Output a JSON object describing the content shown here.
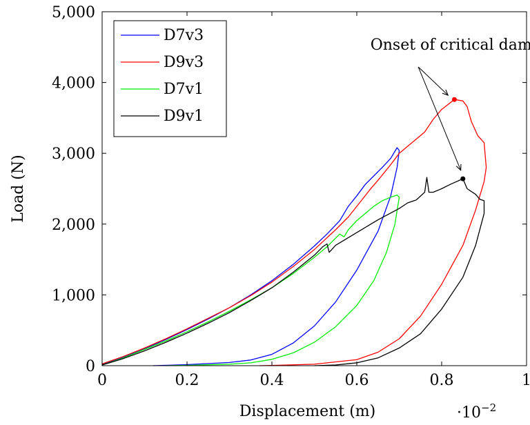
{
  "chart_data": {
    "type": "line",
    "title": "",
    "xlabel": "Displacement (m)",
    "ylabel": "Load (N)",
    "x_scale_note": {
      "base": "·10",
      "exponent": "−2"
    },
    "xlim": [
      0,
      1
    ],
    "ylim": [
      0,
      5000
    ],
    "x_ticks": [
      0,
      0.2,
      0.4,
      0.6,
      0.8,
      1
    ],
    "x_tick_labels": [
      "0",
      "0.2",
      "0.4",
      "0.6",
      "0.8",
      "1"
    ],
    "y_ticks": [
      0,
      1000,
      2000,
      3000,
      4000,
      5000
    ],
    "y_tick_labels": [
      "0",
      "1,000",
      "2,000",
      "3,000",
      "4,000",
      "5,000"
    ],
    "grid": false,
    "legend_position": "top-left",
    "series": [
      {
        "name": "D7v3",
        "color": "#0000ff",
        "points": [
          [
            0,
            20
          ],
          [
            0.05,
            120
          ],
          [
            0.1,
            240
          ],
          [
            0.15,
            370
          ],
          [
            0.2,
            510
          ],
          [
            0.25,
            660
          ],
          [
            0.3,
            820
          ],
          [
            0.35,
            1000
          ],
          [
            0.4,
            1200
          ],
          [
            0.45,
            1430
          ],
          [
            0.5,
            1690
          ],
          [
            0.53,
            1860
          ],
          [
            0.56,
            2050
          ],
          [
            0.57,
            2150
          ],
          [
            0.58,
            2250
          ],
          [
            0.6,
            2400
          ],
          [
            0.62,
            2560
          ],
          [
            0.64,
            2680
          ],
          [
            0.66,
            2800
          ],
          [
            0.68,
            2930
          ],
          [
            0.695,
            3080
          ],
          [
            0.7,
            3040
          ],
          [
            0.695,
            2800
          ],
          [
            0.68,
            2400
          ],
          [
            0.65,
            1900
          ],
          [
            0.6,
            1350
          ],
          [
            0.55,
            900
          ],
          [
            0.5,
            560
          ],
          [
            0.45,
            320
          ],
          [
            0.4,
            160
          ],
          [
            0.35,
            80
          ],
          [
            0.3,
            45
          ],
          [
            0.2,
            15
          ],
          [
            0.12,
            0
          ]
        ]
      },
      {
        "name": "D9v3",
        "color": "#ff0000",
        "points": [
          [
            0,
            25
          ],
          [
            0.05,
            130
          ],
          [
            0.1,
            250
          ],
          [
            0.15,
            380
          ],
          [
            0.2,
            520
          ],
          [
            0.25,
            670
          ],
          [
            0.3,
            820
          ],
          [
            0.35,
            990
          ],
          [
            0.4,
            1180
          ],
          [
            0.45,
            1400
          ],
          [
            0.5,
            1640
          ],
          [
            0.55,
            1920
          ],
          [
            0.58,
            2100
          ],
          [
            0.6,
            2250
          ],
          [
            0.63,
            2480
          ],
          [
            0.65,
            2620
          ],
          [
            0.68,
            2840
          ],
          [
            0.7,
            3000
          ],
          [
            0.73,
            3150
          ],
          [
            0.76,
            3300
          ],
          [
            0.78,
            3480
          ],
          [
            0.8,
            3620
          ],
          [
            0.83,
            3760
          ],
          [
            0.85,
            3740
          ],
          [
            0.86,
            3660
          ],
          [
            0.87,
            3450
          ],
          [
            0.885,
            3250
          ],
          [
            0.9,
            3150
          ],
          [
            0.905,
            2800
          ],
          [
            0.9,
            2600
          ],
          [
            0.88,
            2200
          ],
          [
            0.85,
            1700
          ],
          [
            0.8,
            1150
          ],
          [
            0.75,
            700
          ],
          [
            0.7,
            380
          ],
          [
            0.65,
            190
          ],
          [
            0.6,
            85
          ],
          [
            0.5,
            20
          ],
          [
            0.4,
            3
          ],
          [
            0.37,
            0
          ]
        ]
      },
      {
        "name": "D7v1",
        "color": "#00ee00",
        "points": [
          [
            0,
            10
          ],
          [
            0.05,
            110
          ],
          [
            0.1,
            230
          ],
          [
            0.15,
            350
          ],
          [
            0.2,
            480
          ],
          [
            0.25,
            620
          ],
          [
            0.3,
            770
          ],
          [
            0.35,
            930
          ],
          [
            0.4,
            1100
          ],
          [
            0.45,
            1300
          ],
          [
            0.5,
            1530
          ],
          [
            0.53,
            1680
          ],
          [
            0.56,
            1860
          ],
          [
            0.57,
            1820
          ],
          [
            0.58,
            1920
          ],
          [
            0.6,
            2050
          ],
          [
            0.62,
            2150
          ],
          [
            0.64,
            2250
          ],
          [
            0.66,
            2330
          ],
          [
            0.68,
            2380
          ],
          [
            0.695,
            2410
          ],
          [
            0.7,
            2380
          ],
          [
            0.69,
            2000
          ],
          [
            0.67,
            1600
          ],
          [
            0.64,
            1200
          ],
          [
            0.6,
            850
          ],
          [
            0.55,
            550
          ],
          [
            0.5,
            330
          ],
          [
            0.45,
            180
          ],
          [
            0.4,
            90
          ],
          [
            0.35,
            40
          ],
          [
            0.3,
            20
          ],
          [
            0.2,
            5
          ],
          [
            0.15,
            0
          ]
        ]
      },
      {
        "name": "D9v1",
        "color": "#000000",
        "points": [
          [
            0,
            10
          ],
          [
            0.05,
            100
          ],
          [
            0.1,
            210
          ],
          [
            0.15,
            330
          ],
          [
            0.2,
            460
          ],
          [
            0.25,
            600
          ],
          [
            0.3,
            750
          ],
          [
            0.35,
            920
          ],
          [
            0.4,
            1100
          ],
          [
            0.45,
            1320
          ],
          [
            0.5,
            1560
          ],
          [
            0.52,
            1680
          ],
          [
            0.53,
            1720
          ],
          [
            0.535,
            1600
          ],
          [
            0.55,
            1700
          ],
          [
            0.6,
            1880
          ],
          [
            0.65,
            2060
          ],
          [
            0.7,
            2220
          ],
          [
            0.72,
            2300
          ],
          [
            0.74,
            2340
          ],
          [
            0.76,
            2450
          ],
          [
            0.765,
            2660
          ],
          [
            0.77,
            2450
          ],
          [
            0.78,
            2450
          ],
          [
            0.8,
            2500
          ],
          [
            0.82,
            2560
          ],
          [
            0.85,
            2640
          ],
          [
            0.86,
            2500
          ],
          [
            0.87,
            2460
          ],
          [
            0.88,
            2420
          ],
          [
            0.89,
            2350
          ],
          [
            0.895,
            2340
          ],
          [
            0.9,
            2330
          ],
          [
            0.9,
            2150
          ],
          [
            0.88,
            1700
          ],
          [
            0.85,
            1250
          ],
          [
            0.8,
            800
          ],
          [
            0.75,
            450
          ],
          [
            0.7,
            250
          ],
          [
            0.65,
            110
          ],
          [
            0.6,
            40
          ],
          [
            0.55,
            10
          ],
          [
            0.5,
            0
          ]
        ]
      }
    ],
    "critical_points": [
      {
        "series": "D9v3",
        "x": 0.83,
        "y": 3760,
        "color": "#ff0000"
      },
      {
        "series": "D9v1",
        "x": 0.85,
        "y": 2640,
        "color": "#000000"
      }
    ],
    "annotation": {
      "text": "Onset of critical damage",
      "label_x": 0.855,
      "label_y": 4540,
      "arrow_start": {
        "x": 0.745,
        "y": 4220
      },
      "arrow_targets": [
        {
          "x": 0.815,
          "y": 3820
        },
        {
          "x": 0.845,
          "y": 2760
        }
      ]
    }
  }
}
